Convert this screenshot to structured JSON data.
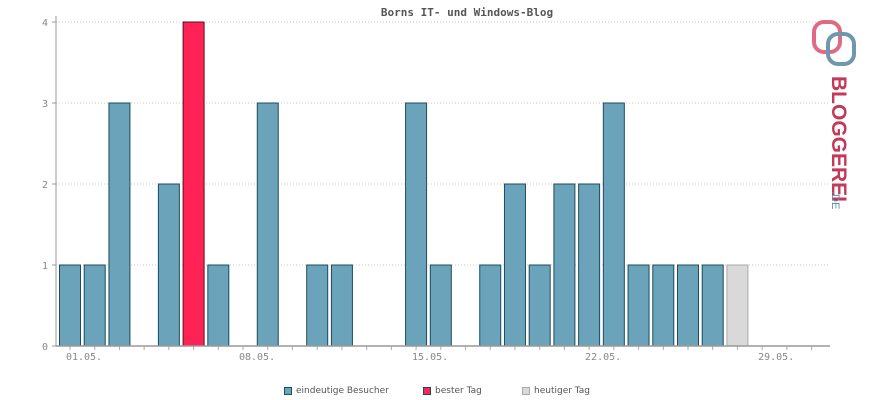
{
  "chart_data": {
    "type": "bar",
    "title": "Borns IT- und Windows-Blog",
    "ylim": [
      0,
      4
    ],
    "y_ticks": [
      0,
      1,
      2,
      3,
      4
    ],
    "x_tick_labels": [
      {
        "day": 1,
        "label": "01.05."
      },
      {
        "day": 8,
        "label": "08.05."
      },
      {
        "day": 15,
        "label": "15.05."
      },
      {
        "day": 22,
        "label": "22.05."
      },
      {
        "day": 29,
        "label": "29.05."
      }
    ],
    "days": [
      1,
      2,
      3,
      4,
      5,
      6,
      7,
      8,
      9,
      10,
      11,
      12,
      13,
      14,
      15,
      16,
      17,
      18,
      19,
      20,
      21,
      22,
      23,
      24,
      25,
      26,
      27,
      28,
      29,
      30,
      31
    ],
    "series": [
      {
        "name": "eindeutige Besucher",
        "color": "#6aa3ba",
        "values": [
          1,
          1,
          3,
          0,
          2,
          4,
          1,
          0,
          3,
          0,
          1,
          1,
          0,
          0,
          3,
          1,
          0,
          1,
          2,
          1,
          2,
          2,
          3,
          1,
          1,
          1,
          1,
          1,
          0,
          0,
          0
        ]
      }
    ],
    "best_day": {
      "day": 6,
      "color": "#ff2255"
    },
    "today": {
      "day": 28,
      "color": "#d9d9d9"
    },
    "grid": true
  },
  "legend": [
    {
      "label": "eindeutige Besucher",
      "color": "#6aa3ba"
    },
    {
      "label": "bester Tag",
      "color": "#ff2255"
    },
    {
      "label": "heutiger Tag",
      "color": "#d9d9d9"
    }
  ],
  "logo": {
    "text": "BLOGGEREI",
    "suffix": ".DE",
    "color": "#c4385a",
    "suffix_color": "#5a8fa8"
  }
}
